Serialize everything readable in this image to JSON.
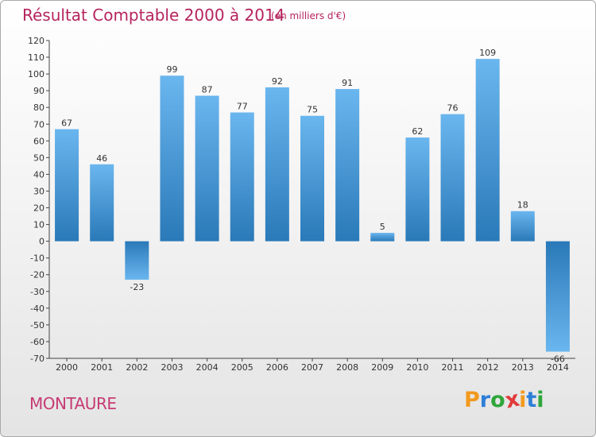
{
  "header": {
    "title": "Résultat Comptable 2000 à 2014",
    "unit": "(en milliers d'€)"
  },
  "commune": "MONTAURE",
  "logo": {
    "letters": [
      "P",
      "r",
      "o",
      "x",
      "i",
      "t",
      "i"
    ],
    "colors": [
      "#f29a1e",
      "#2f7fd8",
      "#2fa63c",
      "#e23a3a",
      "#f29a1e",
      "#2f7fd8",
      "#2fa63c"
    ]
  },
  "colors": {
    "bar_dark": "#2a79b8",
    "bar_light": "#6ab6ef",
    "title": "#b5245e"
  },
  "chart_data": {
    "type": "bar",
    "title": "Résultat Comptable 2000 à 2014",
    "subtitle": "(en milliers d'€)",
    "categories": [
      "2000",
      "2001",
      "2002",
      "2003",
      "2004",
      "2005",
      "2006",
      "2007",
      "2008",
      "2009",
      "2010",
      "2011",
      "2012",
      "2013",
      "2014"
    ],
    "values": [
      67,
      46,
      -23,
      99,
      87,
      77,
      92,
      75,
      91,
      5,
      62,
      76,
      109,
      18,
      -66
    ],
    "ylim": [
      -70,
      120
    ],
    "yticks": [
      120,
      110,
      100,
      90,
      80,
      70,
      60,
      50,
      40,
      30,
      20,
      10,
      0,
      -10,
      -20,
      -30,
      -40,
      -50,
      -60,
      -70
    ],
    "grid": false
  }
}
